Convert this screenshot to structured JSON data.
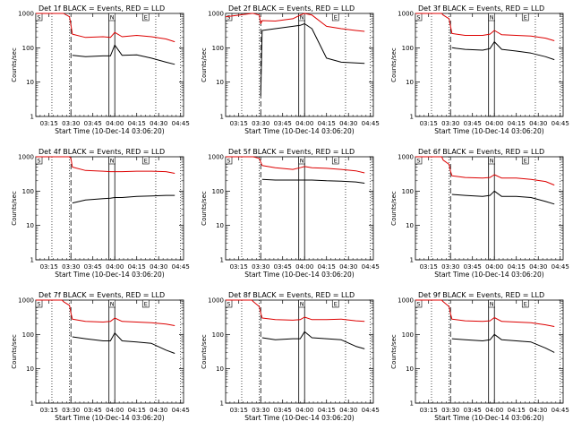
{
  "figure": {
    "background": "#ffffff"
  },
  "colors": {
    "events": "#000000",
    "lld": "#dd0000",
    "axes": "#000000"
  },
  "chart_data": [
    {
      "type": "line",
      "title": "Det 1f BLACK = Events, RED = LLD",
      "xlabel": "Start Time (10-Dec-14 03:06:20)",
      "ylabel": "Counts/sec",
      "xticks": [
        "03:15",
        "03:30",
        "03:45",
        "04:00",
        "04:15",
        "04:30",
        "04:45"
      ],
      "yticks": [
        "1",
        "10",
        "100",
        "1000"
      ],
      "ylim": [
        1,
        1000
      ],
      "yscale": "log",
      "markers": [
        "S",
        "N",
        "E"
      ],
      "series": [
        {
          "color": "black",
          "x": [
            "03:06",
            "03:24",
            "03:25",
            "03:29",
            "03:30",
            "03:31",
            "03:40",
            "03:52",
            "03:57",
            "04:00",
            "04:05",
            "04:15",
            "04:25",
            "04:35",
            "04:41"
          ],
          "y": [
            null,
            null,
            null,
            null,
            null,
            60,
            55,
            58,
            58,
            120,
            60,
            62,
            50,
            38,
            33
          ]
        },
        {
          "color": "red",
          "x": [
            "03:06",
            "03:24",
            "03:25",
            "03:29",
            "03:30",
            "03:31",
            "03:40",
            "03:52",
            "03:57",
            "04:00",
            "04:05",
            "04:15",
            "04:25",
            "04:35",
            "04:41"
          ],
          "y": [
            1000,
            1000,
            1000,
            800,
            460,
            250,
            200,
            210,
            200,
            280,
            210,
            230,
            210,
            180,
            150
          ]
        }
      ]
    },
    {
      "type": "line",
      "title": "Det 2f BLACK = Events, RED = LLD",
      "xlabel": "Start Time (10-Dec-14 03:06:20)",
      "ylabel": "Counts/sec",
      "xticks": [
        "03:15",
        "03:30",
        "03:45",
        "04:00",
        "04:15",
        "04:30",
        "04:45"
      ],
      "yticks": [
        "1",
        "10",
        "100",
        "1000"
      ],
      "ylim": [
        1,
        1000
      ],
      "yscale": "log",
      "markers": [
        "S",
        "N",
        "E"
      ],
      "series": [
        {
          "color": "black",
          "x": [
            "03:06",
            "03:24",
            "03:25",
            "03:29",
            "03:30",
            "03:31",
            "03:40",
            "03:52",
            "03:57",
            "04:00",
            "04:05",
            "04:15",
            "04:25",
            "04:35",
            "04:41"
          ],
          "y": [
            null,
            null,
            null,
            null,
            4,
            320,
            360,
            420,
            450,
            500,
            360,
            50,
            38,
            36,
            35
          ]
        },
        {
          "color": "red",
          "x": [
            "03:06",
            "03:24",
            "03:25",
            "03:29",
            "03:30",
            "03:31",
            "03:40",
            "03:52",
            "03:57",
            "04:00",
            "04:05",
            "04:15",
            "04:25",
            "04:35",
            "04:41"
          ],
          "y": [
            800,
            1000,
            1000,
            900,
            500,
            620,
            600,
            700,
            900,
            1100,
            900,
            420,
            360,
            320,
            300
          ]
        }
      ]
    },
    {
      "type": "line",
      "title": "Det 3f BLACK = Events, RED = LLD",
      "xlabel": "Start Time (10-Dec-14 03:06:20)",
      "ylabel": "Counts/sec",
      "xticks": [
        "03:15",
        "03:30",
        "03:45",
        "04:00",
        "04:15",
        "04:30",
        "04:45"
      ],
      "yticks": [
        "1",
        "10",
        "100",
        "1000"
      ],
      "ylim": [
        1,
        1000
      ],
      "yscale": "log",
      "markers": [
        "S",
        "N",
        "E"
      ],
      "series": [
        {
          "color": "black",
          "x": [
            "03:06",
            "03:24",
            "03:25",
            "03:29",
            "03:30",
            "03:31",
            "03:40",
            "03:52",
            "03:57",
            "04:00",
            "04:05",
            "04:15",
            "04:25",
            "04:35",
            "04:41"
          ],
          "y": [
            null,
            null,
            null,
            null,
            null,
            100,
            90,
            85,
            95,
            150,
            90,
            80,
            70,
            55,
            45
          ]
        },
        {
          "color": "red",
          "x": [
            "03:06",
            "03:24",
            "03:25",
            "03:29",
            "03:30",
            "03:31",
            "03:40",
            "03:52",
            "03:57",
            "04:00",
            "04:05",
            "04:15",
            "04:25",
            "04:35",
            "04:41"
          ],
          "y": [
            1000,
            1000,
            900,
            700,
            420,
            260,
            230,
            230,
            250,
            320,
            240,
            230,
            220,
            190,
            160
          ]
        }
      ]
    },
    {
      "type": "line",
      "title": "Det 4f BLACK = Events, RED = LLD",
      "xlabel": "Start Time (10-Dec-14 03:06:20)",
      "ylabel": "Counts/sec",
      "xticks": [
        "03:15",
        "03:30",
        "03:45",
        "04:00",
        "04:15",
        "04:30",
        "04:45"
      ],
      "yticks": [
        "1",
        "10",
        "100",
        "1000"
      ],
      "ylim": [
        1,
        1000
      ],
      "yscale": "log",
      "markers": [
        "S",
        "N",
        "E"
      ],
      "series": [
        {
          "color": "black",
          "x": [
            "03:06",
            "03:24",
            "03:25",
            "03:29",
            "03:30",
            "03:31",
            "03:40",
            "03:52",
            "03:57",
            "04:00",
            "04:05",
            "04:15",
            "04:25",
            "04:35",
            "04:41"
          ],
          "y": [
            null,
            null,
            null,
            null,
            null,
            45,
            55,
            60,
            62,
            65,
            65,
            70,
            72,
            75,
            75
          ]
        },
        {
          "color": "red",
          "x": [
            "03:06",
            "03:24",
            "03:25",
            "03:29",
            "03:30",
            "03:31",
            "03:40",
            "03:52",
            "03:57",
            "04:00",
            "04:05",
            "04:15",
            "04:25",
            "04:35",
            "04:41"
          ],
          "y": [
            1000,
            1000,
            1000,
            1000,
            900,
            500,
            400,
            380,
            370,
            370,
            370,
            380,
            380,
            370,
            330
          ]
        }
      ]
    },
    {
      "type": "line",
      "title": "Det 5f BLACK = Events, RED = LLD",
      "xlabel": "Start Time (10-Dec-14 03:06:20)",
      "ylabel": "Counts/sec",
      "xticks": [
        "03:15",
        "03:30",
        "03:45",
        "04:00",
        "04:15",
        "04:30",
        "04:45"
      ],
      "yticks": [
        "1",
        "10",
        "100",
        "1000"
      ],
      "ylim": [
        1,
        1000
      ],
      "yscale": "log",
      "markers": [
        "S",
        "N",
        "E"
      ],
      "series": [
        {
          "color": "black",
          "x": [
            "03:06",
            "03:24",
            "03:25",
            "03:29",
            "03:30",
            "03:31",
            "03:40",
            "03:52",
            "03:57",
            "04:00",
            "04:05",
            "04:15",
            "04:25",
            "04:35",
            "04:41"
          ],
          "y": [
            null,
            null,
            null,
            null,
            null,
            220,
            210,
            210,
            210,
            210,
            210,
            200,
            195,
            185,
            170
          ]
        },
        {
          "color": "red",
          "x": [
            "03:06",
            "03:24",
            "03:25",
            "03:29",
            "03:30",
            "03:31",
            "03:40",
            "03:52",
            "03:57",
            "04:00",
            "04:05",
            "04:15",
            "04:25",
            "04:35",
            "04:41"
          ],
          "y": [
            1000,
            1000,
            1000,
            900,
            700,
            560,
            480,
            430,
            480,
            520,
            480,
            460,
            430,
            390,
            340
          ]
        }
      ]
    },
    {
      "type": "line",
      "title": "Det 6f BLACK = Events, RED = LLD",
      "xlabel": "Start Time (10-Dec-14 03:06:20)",
      "ylabel": "Counts/sec",
      "xticks": [
        "03:15",
        "03:30",
        "03:45",
        "04:00",
        "04:15",
        "04:30",
        "04:45"
      ],
      "yticks": [
        "1",
        "10",
        "100",
        "1000"
      ],
      "ylim": [
        1,
        1000
      ],
      "yscale": "log",
      "markers": [
        "S",
        "N",
        "E"
      ],
      "series": [
        {
          "color": "black",
          "x": [
            "03:06",
            "03:24",
            "03:25",
            "03:29",
            "03:30",
            "03:31",
            "03:40",
            "03:52",
            "03:57",
            "04:00",
            "04:05",
            "04:15",
            "04:25",
            "04:35",
            "04:41"
          ],
          "y": [
            null,
            null,
            null,
            null,
            null,
            80,
            75,
            70,
            75,
            100,
            70,
            70,
            65,
            50,
            42
          ]
        },
        {
          "color": "red",
          "x": [
            "03:06",
            "03:24",
            "03:25",
            "03:29",
            "03:30",
            "03:31",
            "03:40",
            "03:52",
            "03:57",
            "04:00",
            "04:05",
            "04:15",
            "04:25",
            "04:35",
            "04:41"
          ],
          "y": [
            1000,
            1000,
            800,
            600,
            380,
            280,
            250,
            240,
            250,
            300,
            240,
            240,
            220,
            190,
            150
          ]
        }
      ]
    },
    {
      "type": "line",
      "title": "Det 7f BLACK = Events, RED = LLD",
      "xlabel": "Start Time (10-Dec-14 03:06:20)",
      "ylabel": "Counts/sec",
      "xticks": [
        "03:15",
        "03:30",
        "03:45",
        "04:00",
        "04:15",
        "04:30",
        "04:45"
      ],
      "yticks": [
        "1",
        "10",
        "100",
        "1000"
      ],
      "ylim": [
        1,
        1000
      ],
      "yscale": "log",
      "markers": [
        "S",
        "N",
        "E"
      ],
      "series": [
        {
          "color": "black",
          "x": [
            "03:06",
            "03:24",
            "03:25",
            "03:29",
            "03:30",
            "03:31",
            "03:40",
            "03:52",
            "03:57",
            "04:00",
            "04:05",
            "04:15",
            "04:25",
            "04:35",
            "04:41"
          ],
          "y": [
            null,
            null,
            null,
            null,
            null,
            85,
            75,
            65,
            65,
            110,
            65,
            60,
            55,
            35,
            28
          ]
        },
        {
          "color": "red",
          "x": [
            "03:06",
            "03:24",
            "03:25",
            "03:29",
            "03:30",
            "03:31",
            "03:40",
            "03:52",
            "03:57",
            "04:00",
            "04:05",
            "04:15",
            "04:25",
            "04:35",
            "04:41"
          ],
          "y": [
            1000,
            1000,
            900,
            700,
            420,
            280,
            240,
            230,
            240,
            300,
            240,
            230,
            220,
            200,
            180
          ]
        }
      ]
    },
    {
      "type": "line",
      "title": "Det 8f BLACK = Events, RED = LLD",
      "xlabel": "Start Time (10-Dec-14 03:06:20)",
      "ylabel": "Counts/sec",
      "xticks": [
        "03:15",
        "03:30",
        "03:45",
        "04:00",
        "04:15",
        "04:30",
        "04:45"
      ],
      "yticks": [
        "1",
        "10",
        "100",
        "1000"
      ],
      "ylim": [
        1,
        1000
      ],
      "yscale": "log",
      "markers": [
        "S",
        "N",
        "E"
      ],
      "series": [
        {
          "color": "black",
          "x": [
            "03:06",
            "03:24",
            "03:25",
            "03:29",
            "03:30",
            "03:31",
            "03:40",
            "03:52",
            "03:57",
            "04:00",
            "04:05",
            "04:15",
            "04:25",
            "04:35",
            "04:41"
          ],
          "y": [
            null,
            null,
            null,
            null,
            null,
            80,
            70,
            75,
            75,
            120,
            80,
            75,
            70,
            45,
            38
          ]
        },
        {
          "color": "red",
          "x": [
            "03:06",
            "03:24",
            "03:25",
            "03:29",
            "03:30",
            "03:31",
            "03:40",
            "03:52",
            "03:57",
            "04:00",
            "04:05",
            "04:15",
            "04:25",
            "04:35",
            "04:41"
          ],
          "y": [
            1000,
            1000,
            900,
            650,
            420,
            300,
            270,
            260,
            270,
            320,
            270,
            270,
            280,
            250,
            240
          ]
        }
      ]
    },
    {
      "type": "line",
      "title": "Det 9f BLACK = Events, RED = LLD",
      "xlabel": "Start Time (10-Dec-14 03:06:20)",
      "ylabel": "Counts/sec",
      "xticks": [
        "03:15",
        "03:30",
        "03:45",
        "04:00",
        "04:15",
        "04:30",
        "04:45"
      ],
      "yticks": [
        "1",
        "10",
        "100",
        "1000"
      ],
      "ylim": [
        1,
        1000
      ],
      "yscale": "log",
      "markers": [
        "S",
        "N",
        "E"
      ],
      "series": [
        {
          "color": "black",
          "x": [
            "03:06",
            "03:24",
            "03:25",
            "03:29",
            "03:30",
            "03:31",
            "03:40",
            "03:52",
            "03:57",
            "04:00",
            "04:05",
            "04:15",
            "04:25",
            "04:35",
            "04:41"
          ],
          "y": [
            null,
            null,
            null,
            null,
            null,
            75,
            70,
            65,
            70,
            100,
            70,
            65,
            60,
            40,
            30
          ]
        },
        {
          "color": "red",
          "x": [
            "03:06",
            "03:24",
            "03:25",
            "03:29",
            "03:30",
            "03:31",
            "03:40",
            "03:52",
            "03:57",
            "04:00",
            "04:05",
            "04:15",
            "04:25",
            "04:35",
            "04:41"
          ],
          "y": [
            1000,
            1000,
            900,
            650,
            400,
            280,
            250,
            240,
            250,
            310,
            240,
            230,
            220,
            190,
            170
          ]
        }
      ]
    }
  ]
}
